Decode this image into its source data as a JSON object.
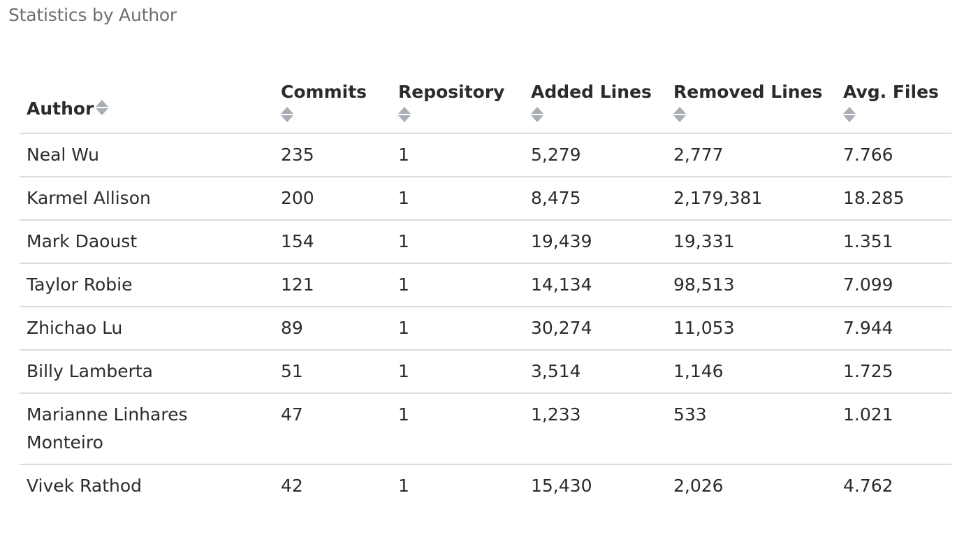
{
  "page": {
    "title": "Statistics by Author"
  },
  "table": {
    "columns": [
      "Author",
      "Commits",
      "Repository",
      "Added Lines",
      "Removed Lines",
      "Avg. Files"
    ],
    "rows": [
      {
        "author": "Neal Wu",
        "commits": "235",
        "repository": "1",
        "added": "5,279",
        "removed": "2,777",
        "avg_files": "7.766"
      },
      {
        "author": "Karmel Allison",
        "commits": "200",
        "repository": "1",
        "added": "8,475",
        "removed": "2,179,381",
        "avg_files": "18.285"
      },
      {
        "author": "Mark Daoust",
        "commits": "154",
        "repository": "1",
        "added": "19,439",
        "removed": "19,331",
        "avg_files": "1.351"
      },
      {
        "author": "Taylor Robie",
        "commits": "121",
        "repository": "1",
        "added": "14,134",
        "removed": "98,513",
        "avg_files": "7.099"
      },
      {
        "author": "Zhichao Lu",
        "commits": "89",
        "repository": "1",
        "added": "30,274",
        "removed": "11,053",
        "avg_files": "7.944"
      },
      {
        "author": "Billy Lamberta",
        "commits": "51",
        "repository": "1",
        "added": "3,514",
        "removed": "1,146",
        "avg_files": "1.725"
      },
      {
        "author": "Marianne Linhares Monteiro",
        "commits": "47",
        "repository": "1",
        "added": "1,233",
        "removed": "533",
        "avg_files": "1.021"
      },
      {
        "author": "Vivek Rathod",
        "commits": "42",
        "repository": "1",
        "added": "15,430",
        "removed": "2,026",
        "avg_files": "4.762"
      }
    ]
  },
  "icons": {
    "sort": "sort-icon"
  },
  "colors": {
    "title": "#6e6e6e",
    "text": "#2b2b2b",
    "divider": "#dcdcdc",
    "sort_icon": "#a9adb4"
  }
}
